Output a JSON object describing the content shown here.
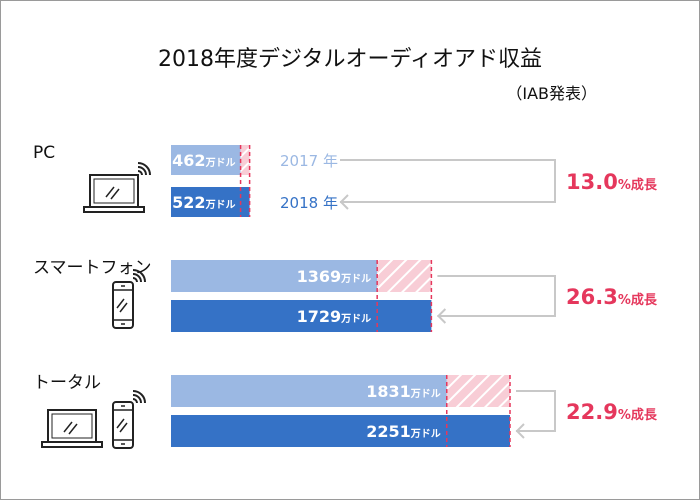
{
  "chart_data": {
    "type": "bar",
    "title": "2018年度デジタルオーディオアド収益",
    "subtitle": "（IAB発表）",
    "unit": "万ドル",
    "legend": [
      "2017 年",
      "2018 年"
    ],
    "categories": [
      "PC",
      "スマートフォン",
      "トータル"
    ],
    "series": [
      {
        "name": "2017 年",
        "values": [
          462,
          1369,
          1831
        ]
      },
      {
        "name": "2018 年",
        "values": [
          522,
          1729,
          2251
        ]
      }
    ],
    "growth_labels": [
      "13.0",
      "26.3",
      "22.9"
    ],
    "growth_suffix": "%成長",
    "icons": [
      "laptop-wifi-icon",
      "smartphone-wifi-icon",
      "laptop-smartphone-wifi-icon"
    ],
    "colors": {
      "2017": "#9bb8e3",
      "2018": "#3572c6",
      "growth": "#e5375c",
      "hatch": "#f8cdd6",
      "bracket": "#c8c8c8"
    }
  }
}
